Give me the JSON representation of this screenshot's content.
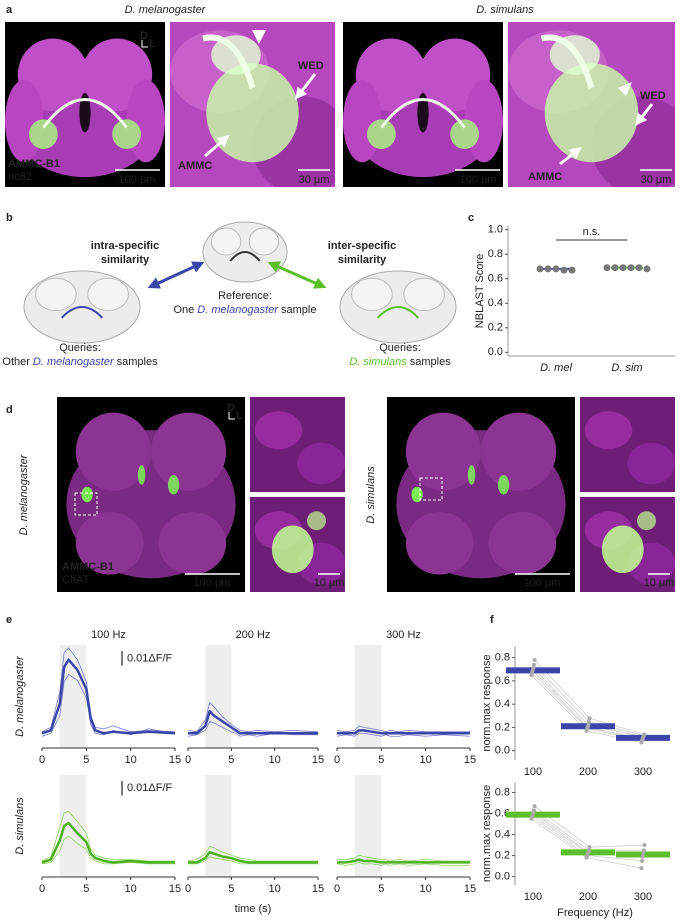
{
  "figure": {
    "panel_labels": [
      "a",
      "b",
      "c",
      "d",
      "e",
      "f"
    ],
    "a": {
      "species": [
        "D. melanogaster",
        "D. simulans"
      ],
      "orientation": [
        "D",
        "L"
      ],
      "neuron": "AMMC-B1",
      "stain": "nc82",
      "scale_bars": [
        "100 μm",
        "30 μm",
        "100 μm",
        "30 μm"
      ],
      "regions": [
        "WED",
        "AMMC",
        "WED",
        "AMMC"
      ]
    },
    "b": {
      "intra": [
        "intra-specific",
        "similarity"
      ],
      "inter": [
        "inter-specific",
        "similarity"
      ],
      "reference": [
        "Reference:",
        "One",
        "D. melanogaster",
        "sample"
      ],
      "query_mel": [
        "Queries:",
        "Other",
        "D. melanogaster",
        "samples"
      ],
      "query_sim": [
        "Queries:",
        "D. simulans",
        "samples"
      ]
    },
    "d": {
      "species": [
        "D. melanogaster",
        "D. simulans"
      ],
      "orientation": [
        "D",
        "L"
      ],
      "neuron": "AMMC-B1",
      "stain": "ChAT",
      "scale_bars": [
        "100 μm",
        "10 μm",
        "100 μm",
        "10 μm"
      ]
    }
  },
  "chart_data": [
    {
      "type": "dot",
      "ylabel": "NBLAST Score",
      "annotation": "n.s.",
      "categories": [
        "D. mel",
        "D. sim"
      ],
      "category_style": "italic",
      "points": [
        [
          0.68,
          0.68,
          0.68,
          0.67,
          0.67
        ],
        [
          0.69,
          0.69,
          0.69,
          0.69,
          0.69,
          0.68
        ]
      ],
      "means": [
        0.68,
        0.69
      ],
      "colors": [
        "#3b45a8",
        "#5cbf2a"
      ],
      "point_color": "#777777",
      "ylim": [
        -0.03,
        1.03
      ],
      "yticks": [
        {
          "value": 0,
          "label": "0.0"
        },
        0.2,
        0.4,
        0.6,
        0.8,
        {
          "value": 1,
          "label": "1.0"
        }
      ]
    },
    {
      "type": "line",
      "title": "100 Hz",
      "ylabel": "D. melanogaster",
      "ylabel_color": "#3b45a8",
      "scale_bar": {
        "value": 0.01,
        "label": "0.01ΔF/F"
      },
      "x": [
        0,
        1,
        2,
        2.5,
        3,
        4,
        5,
        5.5,
        6,
        7,
        8,
        10,
        12,
        15
      ],
      "xlim": [
        0,
        15
      ],
      "xticks": [
        0,
        5,
        10,
        15
      ],
      "ylim": [
        -0.01,
        0.06
      ],
      "shade": [
        2,
        5
      ],
      "series": [
        {
          "color": "#7078cc",
          "line_width": 0.8,
          "values": [
            0.001,
            0.004,
            0.028,
            0.055,
            0.058,
            0.05,
            0.035,
            0.012,
            0.004,
            0.003,
            0.005,
            0.001,
            0.002,
            0.001
          ]
        },
        {
          "color": "#7078cc",
          "line_width": 0.8,
          "values": [
            -0.002,
            0,
            0.012,
            0.035,
            0.04,
            0.036,
            0.024,
            0.006,
            0,
            -0.001,
            0.002,
            -0.001,
            0.003,
            0
          ]
        },
        {
          "color": "#3b45a8",
          "line_width": 2.5,
          "values": [
            0,
            0.002,
            0.02,
            0.045,
            0.05,
            0.043,
            0.03,
            0.01,
            0.002,
            0,
            0.001,
            0,
            0.001,
            0
          ]
        }
      ]
    },
    {
      "type": "line",
      "title": "200 Hz",
      "x": [
        0,
        1,
        2,
        2.5,
        3,
        4,
        5,
        5.5,
        6,
        7,
        8,
        10,
        12,
        15
      ],
      "xlim": [
        0,
        15
      ],
      "xticks": [
        0,
        5,
        10,
        15
      ],
      "ylim": [
        -0.01,
        0.06
      ],
      "shade": [
        2,
        5
      ],
      "series": [
        {
          "color": "#7078cc",
          "line_width": 0.8,
          "values": [
            0.002,
            0.001,
            0.009,
            0.021,
            0.018,
            0.011,
            0.006,
            0.004,
            0.002,
            0.001,
            0.002,
            0.001,
            0.002,
            0.001
          ]
        },
        {
          "color": "#7078cc",
          "line_width": 0.8,
          "values": [
            -0.002,
            -0.001,
            0.002,
            0.008,
            0.007,
            0.004,
            0.001,
            0,
            -0.002,
            -0.001,
            -0.002,
            0,
            -0.001,
            -0.001
          ]
        },
        {
          "color": "#3b45a8",
          "line_width": 2.5,
          "values": [
            0,
            0,
            0.005,
            0.015,
            0.012,
            0.008,
            0.004,
            0.002,
            0,
            0,
            0,
            0,
            0,
            0
          ]
        }
      ]
    },
    {
      "type": "line",
      "title": "300 Hz",
      "x": [
        0,
        1,
        2,
        2.5,
        3,
        4,
        5,
        5.5,
        6,
        7,
        8,
        10,
        12,
        15
      ],
      "xlim": [
        0,
        15
      ],
      "xticks": [
        0,
        5,
        10,
        15
      ],
      "ylim": [
        -0.01,
        0.06
      ],
      "shade": [
        2,
        5
      ],
      "series": [
        {
          "color": "#7078cc",
          "line_width": 0.8,
          "values": [
            0.002,
            0.001,
            0.002,
            0.005,
            0.004,
            0.003,
            0.002,
            0.001,
            0.002,
            0.001,
            0.002,
            0.001,
            0.001,
            0.001
          ]
        },
        {
          "color": "#7078cc",
          "line_width": 0.8,
          "values": [
            -0.002,
            -0.001,
            -0.002,
            0,
            0,
            -0.001,
            -0.002,
            -0.001,
            -0.002,
            -0.002,
            -0.001,
            -0.002,
            -0.001,
            -0.002
          ]
        },
        {
          "color": "#3b45a8",
          "line_width": 2.5,
          "values": [
            0,
            0,
            0,
            0.002,
            0.002,
            0.001,
            0,
            0,
            0,
            0,
            0,
            0,
            0,
            0
          ]
        }
      ]
    },
    {
      "type": "line",
      "ylabel": "D. simulans",
      "ylabel_color": "#5cbf2a",
      "scale_bar": {
        "value": 0.01,
        "label": "0.01ΔF/F"
      },
      "x": [
        0,
        1,
        2,
        2.5,
        3,
        4,
        5,
        5.5,
        6,
        7,
        8,
        10,
        12,
        15
      ],
      "xlim": [
        0,
        15
      ],
      "xticks": [
        0,
        5,
        10,
        15
      ],
      "ylim": [
        -0.01,
        0.06
      ],
      "shade": [
        2,
        5
      ],
      "series": [
        {
          "color": "#8ad45e",
          "line_width": 0.8,
          "values": [
            0.001,
            0.004,
            0.024,
            0.034,
            0.035,
            0.028,
            0.02,
            0.009,
            0.005,
            0.003,
            0.002,
            0.002,
            0.001,
            0.001
          ]
        },
        {
          "color": "#8ad45e",
          "line_width": 0.8,
          "values": [
            -0.001,
            0,
            0.008,
            0.016,
            0.018,
            0.013,
            0.009,
            0.003,
            0.001,
            -0.001,
            -0.001,
            0,
            -0.001,
            -0.001
          ]
        },
        {
          "color": "#4fb020",
          "line_width": 2.5,
          "values": [
            0,
            0.002,
            0.015,
            0.025,
            0.027,
            0.02,
            0.014,
            0.006,
            0.003,
            0.001,
            0,
            0.001,
            0,
            0
          ]
        }
      ]
    },
    {
      "type": "line",
      "xlabel": "time (s)",
      "x": [
        0,
        1,
        2,
        2.5,
        3,
        4,
        5,
        5.5,
        6,
        7,
        8,
        10,
        12,
        15
      ],
      "xlim": [
        0,
        15
      ],
      "xticks": [
        0,
        5,
        10,
        15
      ],
      "ylim": [
        -0.01,
        0.06
      ],
      "shade": [
        2,
        5
      ],
      "series": [
        {
          "color": "#8ad45e",
          "line_width": 0.8,
          "values": [
            0.001,
            0.002,
            0.006,
            0.011,
            0.01,
            0.007,
            0.005,
            0.004,
            0.003,
            0.002,
            0.001,
            0.001,
            0.001,
            0.001
          ]
        },
        {
          "color": "#8ad45e",
          "line_width": 0.8,
          "values": [
            -0.001,
            -0.001,
            0.001,
            0.004,
            0.003,
            0.002,
            0.001,
            0,
            -0.001,
            -0.001,
            -0.001,
            -0.001,
            -0.001,
            -0.001
          ]
        },
        {
          "color": "#4fb020",
          "line_width": 2.5,
          "values": [
            0,
            0,
            0.003,
            0.007,
            0.006,
            0.004,
            0.003,
            0.002,
            0.001,
            0,
            0,
            0,
            0,
            0
          ]
        }
      ]
    },
    {
      "type": "line",
      "x": [
        0,
        1,
        2,
        2.5,
        3,
        4,
        5,
        5.5,
        6,
        7,
        8,
        10,
        12,
        15
      ],
      "xlim": [
        0,
        15
      ],
      "xticks": [
        0,
        5,
        10,
        15
      ],
      "ylim": [
        -0.01,
        0.06
      ],
      "shade": [
        2,
        5
      ],
      "series": [
        {
          "color": "#8ad45e",
          "line_width": 0.8,
          "values": [
            0.002,
            0.002,
            0.003,
            0.005,
            0.004,
            0.003,
            0.002,
            0.002,
            0.001,
            0.002,
            0.001,
            0.002,
            0.001,
            0.001
          ]
        },
        {
          "color": "#8ad45e",
          "line_width": 0.8,
          "values": [
            -0.001,
            -0.002,
            -0.001,
            0,
            -0.001,
            -0.001,
            -0.002,
            -0.001,
            -0.002,
            -0.001,
            -0.002,
            -0.001,
            -0.002,
            -0.002
          ]
        },
        {
          "color": "#4fb020",
          "line_width": 2.5,
          "values": [
            0,
            0,
            0.001,
            0.002,
            0.001,
            0.001,
            0,
            0,
            0,
            0,
            0,
            0,
            0,
            0
          ]
        }
      ]
    },
    {
      "type": "dot",
      "ylabel": "norm.max response",
      "categories": [
        "100",
        "200",
        "300"
      ],
      "connect": true,
      "points": [
        [
          0.65,
          0.67,
          0.69,
          0.71,
          0.74,
          0.78
        ],
        [
          0.17,
          0.19,
          0.2,
          0.22,
          0.25,
          0.28
        ],
        [
          0.07,
          0.09,
          0.1,
          0.12,
          0.13,
          0.14
        ]
      ],
      "means": [
        0.69,
        0.21,
        0.11
      ],
      "colors": [
        "#3b45a8",
        "#3b45a8",
        "#3b45a8"
      ],
      "point_color": "#aaaaaa",
      "ylim": [
        -0.08,
        0.9
      ],
      "yticks": [
        {
          "value": 0,
          "label": "0.0"
        },
        0.2,
        0.4,
        0.6,
        0.8
      ]
    },
    {
      "type": "dot",
      "ylabel": "norm.max response",
      "xlabel": "Frequency (Hz)",
      "categories": [
        "100",
        "200",
        "300"
      ],
      "connect": true,
      "points": [
        [
          0.55,
          0.57,
          0.59,
          0.61,
          0.63,
          0.67
        ],
        [
          0.18,
          0.2,
          0.22,
          0.23,
          0.25,
          0.28
        ],
        [
          0.08,
          0.15,
          0.19,
          0.22,
          0.25,
          0.3
        ]
      ],
      "means": [
        0.59,
        0.23,
        0.21
      ],
      "colors": [
        "#5cbf2a",
        "#5cbf2a",
        "#5cbf2a"
      ],
      "point_color": "#aaaaaa",
      "ylim": [
        -0.08,
        0.9
      ],
      "yticks": [
        {
          "value": 0,
          "label": "0.0"
        },
        0.2,
        0.4,
        0.6,
        0.8
      ]
    }
  ]
}
